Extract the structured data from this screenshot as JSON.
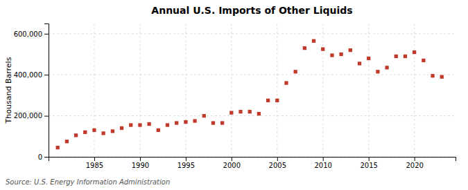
{
  "chart_data": {
    "type": "scatter",
    "title": "Annual U.S. Imports of Other Liquids",
    "ylabel": "Thousand Barrels",
    "source": "Source: U.S. Energy Information Administration",
    "x": [
      1981,
      1982,
      1983,
      1984,
      1985,
      1986,
      1987,
      1988,
      1989,
      1990,
      1991,
      1992,
      1993,
      1994,
      1995,
      1996,
      1997,
      1998,
      1999,
      2000,
      2001,
      2002,
      2003,
      2004,
      2005,
      2006,
      2007,
      2008,
      2009,
      2010,
      2011,
      2012,
      2013,
      2014,
      2015,
      2016,
      2017,
      2018,
      2019,
      2020,
      2021,
      2022,
      2023
    ],
    "values": [
      45000,
      75000,
      105000,
      120000,
      130000,
      115000,
      125000,
      140000,
      155000,
      155000,
      160000,
      130000,
      155000,
      165000,
      170000,
      175000,
      200000,
      165000,
      165000,
      215000,
      220000,
      220000,
      210000,
      275000,
      275000,
      360000,
      415000,
      530000,
      565000,
      525000,
      495000,
      500000,
      520000,
      455000,
      480000,
      415000,
      435000,
      490000,
      490000,
      510000,
      470000,
      395000,
      390000
    ],
    "color": "#c0392b",
    "marker": "square",
    "xlim": [
      1980.0,
      2024.5
    ],
    "xticks": [
      1985,
      1990,
      1995,
      2000,
      2005,
      2010,
      2015,
      2020
    ],
    "ylim": [
      0,
      650000
    ],
    "yticks": [
      0,
      {
        "value": 200000,
        "label": "200,000"
      },
      {
        "value": 400000,
        "label": "400,000"
      },
      {
        "value": 600000,
        "label": "600,000"
      }
    ],
    "grid": true
  }
}
